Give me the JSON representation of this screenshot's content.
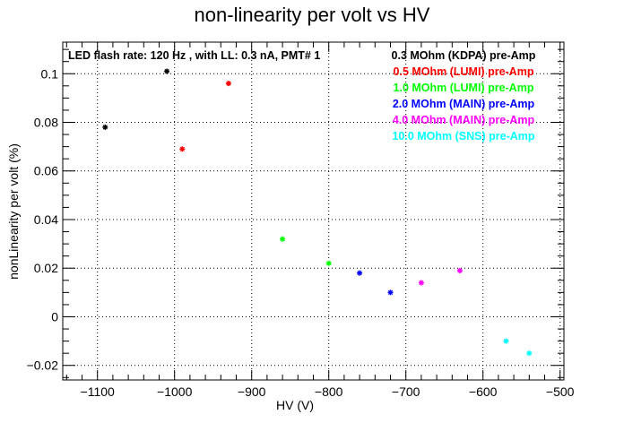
{
  "chart_data": {
    "type": "scatter",
    "title": "non-linearity per volt vs HV",
    "xlabel": "HV (V)",
    "ylabel": "nonLinearity per volt (%)",
    "xlim": [
      -1145,
      -495
    ],
    "ylim": [
      -0.026,
      0.113
    ],
    "xticks": [
      -1100,
      -1000,
      -900,
      -800,
      -700,
      -600,
      -500
    ],
    "xtick_labels": [
      "−1100",
      "−1000",
      "−900",
      "−800",
      "−700",
      "−600",
      "−500"
    ],
    "yticks": [
      -0.02,
      0,
      0.02,
      0.04,
      0.06,
      0.08,
      0.1
    ],
    "ytick_labels": [
      "−0.02",
      "0",
      "0.02",
      "0.04",
      "0.06",
      "0.08",
      "0.1"
    ],
    "grid": true,
    "annotation": "LED flash rate: 120 Hz , with LL: 0.3 nA, PMT# 1",
    "legend_position": "top-right",
    "series": [
      {
        "name": "0.3 MOhm (KDPA) pre-Amp",
        "color": "#000000",
        "x": [
          -1090,
          -1010
        ],
        "y": [
          0.078,
          0.101
        ]
      },
      {
        "name": "0.5 MOhm (LUMI) pre-Amp",
        "color": "#ff0000",
        "x": [
          -990,
          -930
        ],
        "y": [
          0.069,
          0.096
        ]
      },
      {
        "name": "1.0 MOhm (LUMI) pre-Amp",
        "color": "#00ff00",
        "x": [
          -860,
          -800
        ],
        "y": [
          0.032,
          0.022
        ]
      },
      {
        "name": "2.0 MOhm (MAIN) pre-Amp",
        "color": "#0000ff",
        "x": [
          -760,
          -720
        ],
        "y": [
          0.018,
          0.01
        ]
      },
      {
        "name": "4.0 MOhm (MAIN) pre-Amp",
        "color": "#ff00ff",
        "x": [
          -680,
          -630
        ],
        "y": [
          0.014,
          0.019
        ]
      },
      {
        "name": "10.0 MOhm (SNS) pre-Amp",
        "color": "#00ffff",
        "x": [
          -570,
          -540
        ],
        "y": [
          -0.01,
          -0.015
        ]
      }
    ]
  }
}
